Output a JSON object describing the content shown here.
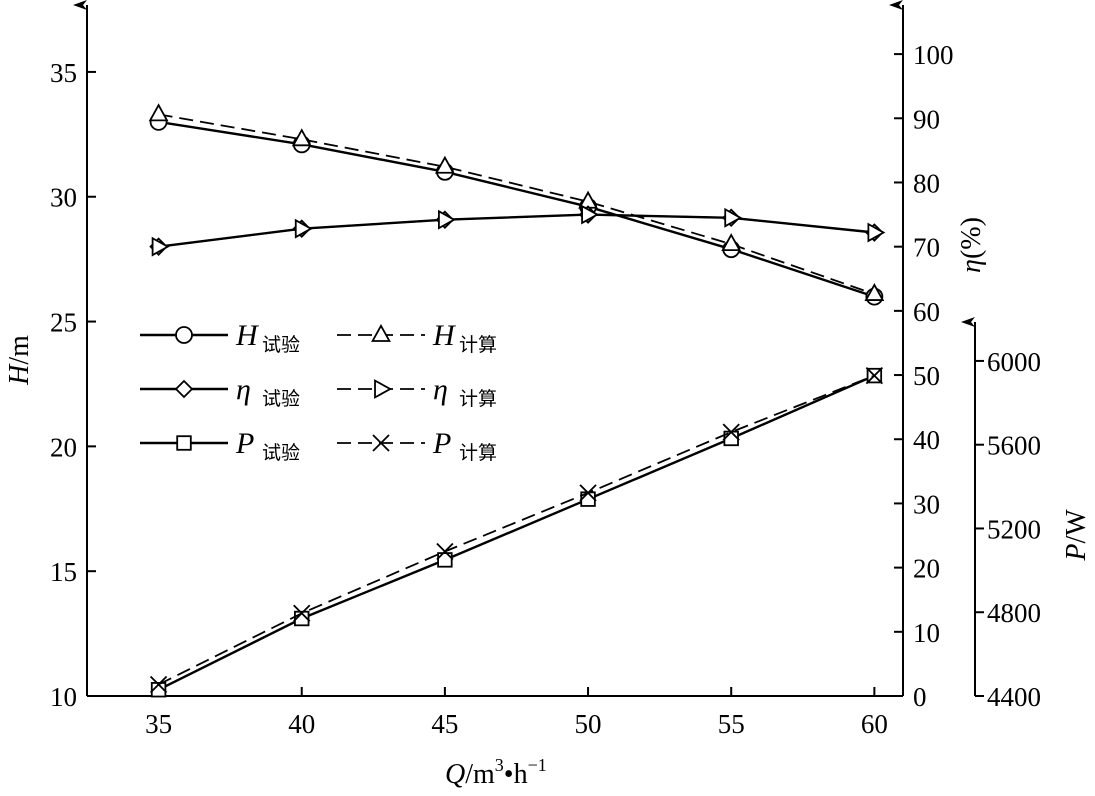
{
  "chart_data": {
    "type": "line",
    "x_label": {
      "text": "Q",
      "unit": "/m",
      "sup1": "3",
      "dot": "•",
      "mid": "h",
      "sup2": "−1"
    },
    "y_left_label": {
      "var": "H",
      "unit": "/m"
    },
    "y_right_label": {
      "var": "η",
      "unit": "(%)"
    },
    "y_right2_label": {
      "var": "P",
      "unit": "/W"
    },
    "x_ticks": [
      "35",
      "40",
      "45",
      "50",
      "55",
      "60"
    ],
    "y_left_ticks": [
      "10",
      "15",
      "20",
      "25",
      "30",
      "35"
    ],
    "y_right_ticks": [
      "0",
      "10",
      "20",
      "30",
      "40",
      "50",
      "60",
      "70",
      "80",
      "90",
      "100"
    ],
    "y_right2_ticks": [
      "4400",
      "4800",
      "5200",
      "5600",
      "6000"
    ],
    "x_range": [
      32.5,
      61
    ],
    "y_left_range": [
      10,
      37
    ],
    "y_right_range": [
      0,
      105
    ],
    "y_right2_range": [
      4400,
      6100
    ],
    "x": [
      35,
      40,
      45,
      50,
      55,
      60
    ],
    "series": [
      {
        "name": "H",
        "sub": "试验",
        "axis": "left",
        "style": "solid",
        "marker": "circle",
        "values": [
          33.0,
          32.1,
          31.0,
          29.6,
          27.9,
          26.0
        ]
      },
      {
        "name": "H",
        "sub": "计算",
        "axis": "left",
        "style": "dashed",
        "marker": "triangle-up",
        "values": [
          33.3,
          32.3,
          31.2,
          29.8,
          28.1,
          26.1
        ]
      },
      {
        "name": "η",
        "sub": "试验",
        "axis": "right",
        "style": "solid",
        "marker": "diamond",
        "values": [
          70.0,
          72.8,
          74.2,
          75.0,
          74.5,
          72.2
        ]
      },
      {
        "name": "η",
        "sub": "计算",
        "axis": "right",
        "style": "dashed",
        "marker": "triangle-right",
        "values": [
          70.0,
          72.8,
          74.2,
          75.0,
          74.5,
          72.2
        ]
      },
      {
        "name": "P",
        "sub": "试验",
        "axis": "right2",
        "style": "solid",
        "marker": "square",
        "values": [
          4430,
          4770,
          5050,
          5340,
          5630,
          5930
        ]
      },
      {
        "name": "P",
        "sub": "计算",
        "axis": "right2",
        "style": "dashed",
        "marker": "x",
        "values": [
          4455,
          4795,
          5090,
          5370,
          5660,
          5930
        ]
      }
    ],
    "legend": [
      [
        {
          "name": "H",
          "sub": "试验"
        },
        {
          "name": "H",
          "sub": "计算"
        }
      ],
      [
        {
          "name": "η",
          "sub": "试验"
        },
        {
          "name": "η",
          "sub": "计算"
        }
      ],
      [
        {
          "name": "P",
          "sub": "试验"
        },
        {
          "name": "P",
          "sub": "计算"
        }
      ]
    ],
    "legend_position": "left-middle",
    "grid": false
  }
}
